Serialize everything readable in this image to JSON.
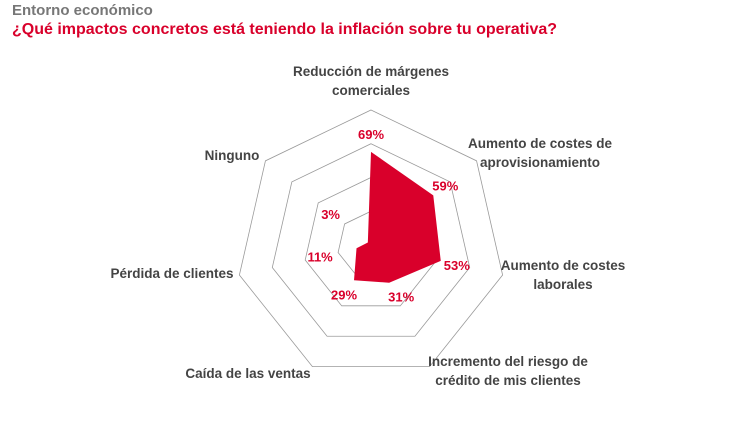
{
  "header": {
    "section": "Entorno económico",
    "question": "¿Qué impactos concretos está teniendo la inflación sobre tu operativa?"
  },
  "colors": {
    "accent": "#d9002b",
    "grid": "#9a9a9a",
    "label": "#444444"
  },
  "chart_data": {
    "type": "radar",
    "title": "¿Qué impactos concretos está teniendo la inflación sobre tu operativa?",
    "categories": [
      [
        "Reducción de márgenes",
        "comerciales"
      ],
      [
        "Aumento de costes de",
        "aprovisionamiento"
      ],
      [
        "Aumento de costes",
        "laborales"
      ],
      [
        "Incremento del riesgo de",
        "crédito de mis clientes"
      ],
      [
        "Caída de las ventas"
      ],
      [
        "Pérdida de clientes"
      ],
      [
        "Ninguno"
      ]
    ],
    "values": [
      69,
      59,
      53,
      31,
      29,
      11,
      3
    ],
    "value_labels": [
      "69%",
      "59%",
      "53%",
      "31%",
      "29%",
      "11%",
      "3%"
    ],
    "rlim": [
      0,
      100
    ],
    "grid_rings": 4,
    "legend": "none"
  }
}
